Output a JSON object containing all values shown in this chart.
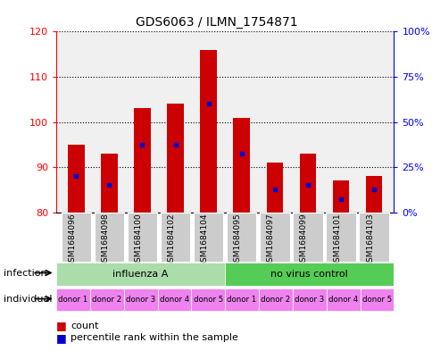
{
  "title": "GDS6063 / ILMN_1754871",
  "samples": [
    "GSM1684096",
    "GSM1684098",
    "GSM1684100",
    "GSM1684102",
    "GSM1684104",
    "GSM1684095",
    "GSM1684097",
    "GSM1684099",
    "GSM1684101",
    "GSM1684103"
  ],
  "bar_bottoms": [
    80,
    80,
    80,
    80,
    80,
    80,
    80,
    80,
    80,
    80
  ],
  "bar_tops": [
    95,
    93,
    103,
    104,
    116,
    101,
    91,
    93,
    87,
    88
  ],
  "blue_positions": [
    88,
    86,
    95,
    95,
    104,
    93,
    85,
    86,
    83,
    85
  ],
  "bar_color": "#cc0000",
  "blue_color": "#0000cc",
  "ylim_left": [
    80,
    120
  ],
  "ylim_right": [
    0,
    100
  ],
  "yticks_left": [
    80,
    90,
    100,
    110,
    120
  ],
  "yticks_right": [
    0,
    25,
    50,
    75,
    100
  ],
  "ytick_labels_right": [
    "0%",
    "25%",
    "50%",
    "75%",
    "100%"
  ],
  "infection_groups": [
    {
      "label": "influenza A",
      "span": [
        0,
        5
      ],
      "color": "#aaddaa"
    },
    {
      "label": "no virus control",
      "span": [
        5,
        10
      ],
      "color": "#55cc55"
    }
  ],
  "individuals": [
    "donor 1",
    "donor 2",
    "donor 3",
    "donor 4",
    "donor 5",
    "donor 1",
    "donor 2",
    "donor 3",
    "donor 4",
    "donor 5"
  ],
  "individual_color": "#ee82ee",
  "bg_color": "#cccccc",
  "legend_count_color": "#cc0000",
  "legend_blue_color": "#0000cc",
  "infection_label": "infection",
  "individual_label": "individual",
  "bar_width": 0.5
}
